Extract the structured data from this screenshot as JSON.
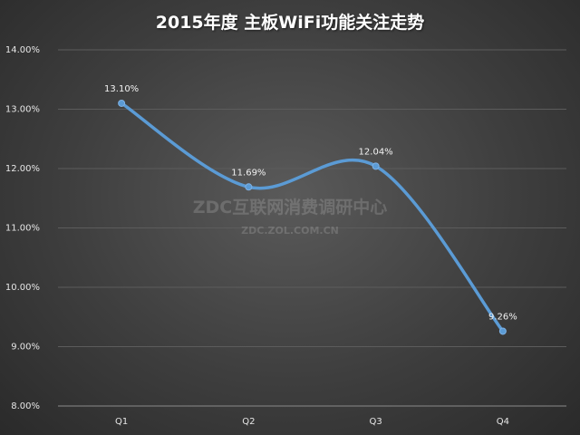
{
  "chart_data": {
    "type": "line",
    "title": "2015年度 主板WiFi功能关注走势",
    "categories": [
      "Q1",
      "Q2",
      "Q3",
      "Q4"
    ],
    "values": [
      13.1,
      11.69,
      12.04,
      9.26
    ],
    "value_labels": [
      "13.10%",
      "11.69%",
      "12.04%",
      "9.26%"
    ],
    "y_ticks": [
      "8.00%",
      "9.00%",
      "10.00%",
      "11.00%",
      "12.00%",
      "13.00%",
      "14.00%"
    ],
    "ylim": [
      8,
      14
    ],
    "grid": true,
    "legend": "none",
    "line_color": "#5b9bd5"
  },
  "watermark": {
    "main": "ZDC互联网消费调研中心",
    "sub": "ZDC.ZOL.COM.CN"
  }
}
